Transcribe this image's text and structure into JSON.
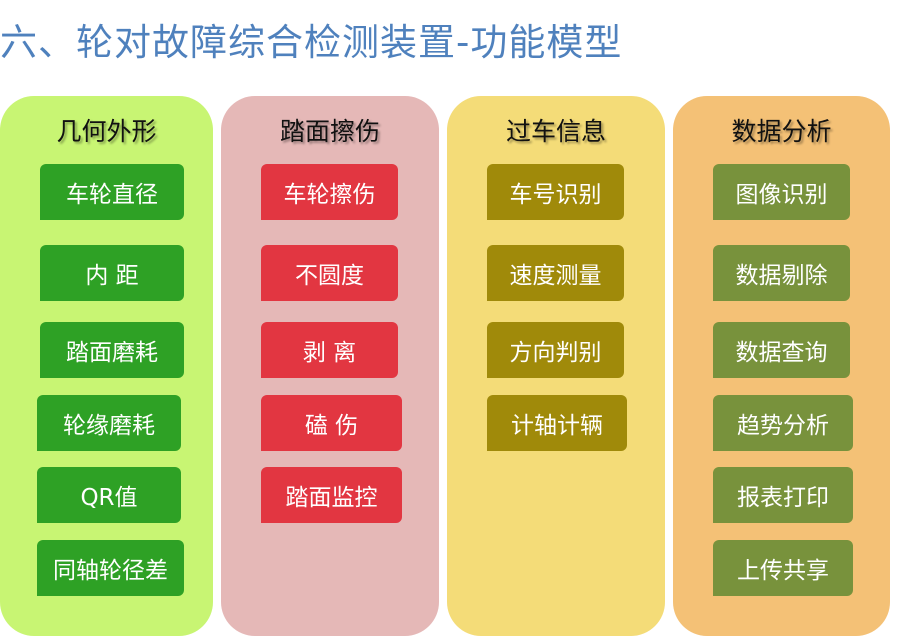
{
  "title": "六、轮对故障综合检测装置-功能模型",
  "columns": [
    {
      "title": "几何外形",
      "bg": "#c8f573",
      "item_color": "#2ea125",
      "items": [
        "车轮直径",
        "内 距",
        "踏面磨耗",
        "轮缘磨耗",
        "QR值",
        "同轴轮径差"
      ]
    },
    {
      "title": "踏面擦伤",
      "bg": "#e5b8b7",
      "item_color": "#e23641",
      "items": [
        "车轮擦伤",
        "不圆度",
        "剥 离",
        "磕 伤",
        "踏面监控"
      ]
    },
    {
      "title": "过车信息",
      "bg": "#f4dc78",
      "item_color": "#a08a0a",
      "items": [
        "车号识别",
        "速度测量",
        "方向判别",
        "计轴计辆"
      ]
    },
    {
      "title": "数据分析",
      "bg": "#f4c176",
      "item_color": "#78923c",
      "items": [
        "图像识别",
        "数据剔除",
        "数据查询",
        "趋势分析",
        "报表打印",
        "上传共享"
      ]
    }
  ]
}
